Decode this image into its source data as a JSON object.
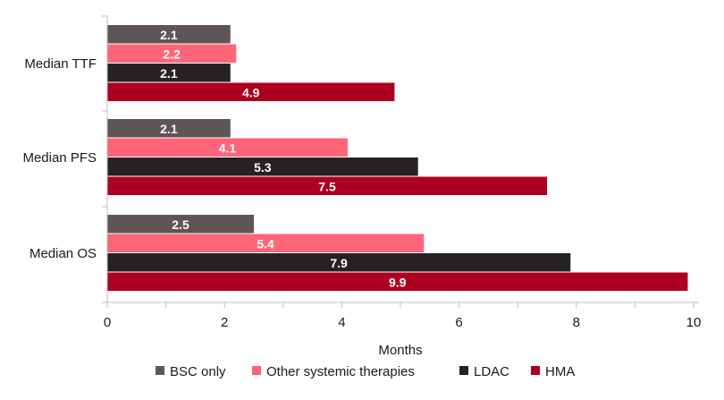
{
  "chart_data": {
    "type": "bar",
    "orientation": "horizontal",
    "categories": [
      "Median TTF",
      "Median PFS",
      "Median OS"
    ],
    "series": [
      {
        "name": "BSC only",
        "color": "#5f5557",
        "values": [
          2.1,
          2.1,
          2.5
        ]
      },
      {
        "name": "Other systemic therapies",
        "color": "#ff6578",
        "values": [
          2.2,
          4.1,
          5.4
        ]
      },
      {
        "name": "LDAC",
        "color": "#262223",
        "values": [
          2.1,
          5.3,
          7.9
        ]
      },
      {
        "name": "HMA",
        "color": "#ad0020",
        "values": [
          4.9,
          7.5,
          9.9
        ]
      }
    ],
    "xlabel": "Months",
    "xlim": [
      0,
      10
    ],
    "xticks": [
      0,
      2,
      4,
      6,
      8,
      10
    ],
    "legend_position": "bottom",
    "grid": false
  }
}
